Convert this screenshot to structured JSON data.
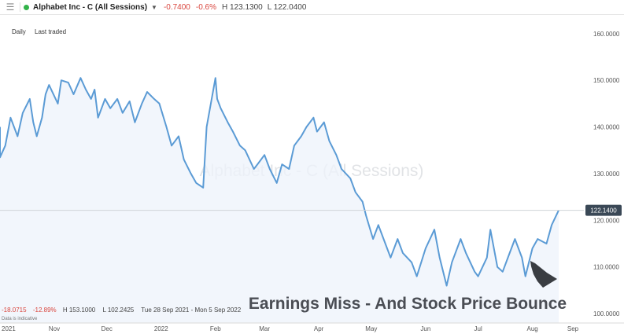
{
  "header": {
    "menu_icon": "hamburger-menu-icon",
    "symbol": "Alphabet Inc - C (All Sessions)",
    "change": "-0.7400",
    "change_pct": "-0.6%",
    "high": "H 123.1300",
    "low": "L 122.0400"
  },
  "timeframes": [
    "Daily",
    "Last traded"
  ],
  "period_stats": {
    "change": "-18.0715",
    "change_pct": "-12.89%",
    "high": "H 153.1000",
    "low": "L 102.2425",
    "range": "Tue 28 Sep 2021 - Mon 5 Sep 2022"
  },
  "disclaimer": "Data is indicative",
  "colors": {
    "line": "#5b9bd5",
    "negative": "#d9453d",
    "status": "#33b34a",
    "price_tag": "#3a4856"
  },
  "chart_data": {
    "type": "area",
    "watermark": "Alphabet Inc - C (All Sessions)",
    "annotation": "Earnings Miss - And Stock Price Bounce",
    "annotation_arrow": "pointing up-left to the late-July low",
    "last_price": "122.1400",
    "ylim": [
      98,
      164
    ],
    "y_ticks": [
      "160.0000",
      "150.0000",
      "140.0000",
      "130.0000",
      "120.0000",
      "110.0000",
      "100.0000"
    ],
    "y_tick_values": [
      160,
      150,
      140,
      130,
      120,
      110,
      100
    ],
    "x_ticks": [
      "2021",
      "Nov",
      "Dec",
      "2022",
      "Feb",
      "Mar",
      "Apr",
      "May",
      "Jun",
      "Jul",
      "Aug",
      "Sep"
    ],
    "x_tick_dates": [
      "2021-10-01",
      "2021-11-01",
      "2021-12-01",
      "2022-01-01",
      "2022-02-01",
      "2022-03-01",
      "2022-04-01",
      "2022-05-01",
      "2022-06-01",
      "2022-07-01",
      "2022-08-01",
      "2022-09-01"
    ],
    "grid": false,
    "series": [
      {
        "dates": [
          "2021-09-28",
          "2021-10-01",
          "2021-10-04",
          "2021-10-07",
          "2021-10-11",
          "2021-10-14",
          "2021-10-18",
          "2021-10-20",
          "2021-10-22",
          "2021-10-25",
          "2021-10-27",
          "2021-10-29",
          "2021-11-03",
          "2021-11-05",
          "2021-11-09",
          "2021-11-12",
          "2021-11-16",
          "2021-11-19",
          "2021-11-22",
          "2021-11-24",
          "2021-11-26",
          "2021-11-30",
          "2021-12-03",
          "2021-12-07",
          "2021-12-10",
          "2021-12-14",
          "2021-12-17",
          "2021-12-21",
          "2021-12-24",
          "2021-12-28",
          "2021-12-31",
          "2022-01-04",
          "2022-01-07",
          "2022-01-11",
          "2022-01-14",
          "2022-01-18",
          "2022-01-21",
          "2022-01-25",
          "2022-01-27",
          "2022-02-01",
          "2022-02-02",
          "2022-02-04",
          "2022-02-08",
          "2022-02-11",
          "2022-02-15",
          "2022-02-18",
          "2022-02-23",
          "2022-02-25",
          "2022-03-01",
          "2022-03-04",
          "2022-03-08",
          "2022-03-11",
          "2022-03-15",
          "2022-03-18",
          "2022-03-22",
          "2022-03-25",
          "2022-03-29",
          "2022-03-31",
          "2022-04-04",
          "2022-04-07",
          "2022-04-11",
          "2022-04-14",
          "2022-04-19",
          "2022-04-22",
          "2022-04-26",
          "2022-04-28",
          "2022-05-02",
          "2022-05-05",
          "2022-05-09",
          "2022-05-12",
          "2022-05-16",
          "2022-05-19",
          "2022-05-24",
          "2022-05-27",
          "2022-06-01",
          "2022-06-06",
          "2022-06-09",
          "2022-06-13",
          "2022-06-16",
          "2022-06-21",
          "2022-06-24",
          "2022-06-29",
          "2022-07-01",
          "2022-07-06",
          "2022-07-08",
          "2022-07-12",
          "2022-07-15",
          "2022-07-19",
          "2022-07-22",
          "2022-07-26",
          "2022-07-28",
          "2022-08-01",
          "2022-08-04",
          "2022-08-09",
          "2022-08-12",
          "2022-08-16"
        ],
        "values": [
          140,
          133.5,
          136,
          142,
          138,
          143,
          146,
          141,
          138,
          142,
          147,
          149,
          145,
          150,
          149.5,
          147,
          150.5,
          148,
          146,
          148,
          142,
          146,
          144,
          146,
          143,
          145.5,
          141,
          145,
          147.5,
          146,
          145,
          140,
          136,
          138,
          133,
          130,
          128,
          127,
          140,
          150.5,
          146,
          144,
          141,
          139,
          136,
          135,
          131,
          132,
          134,
          131,
          128,
          132,
          131,
          136,
          138,
          140,
          142,
          139,
          141,
          137,
          134,
          131,
          129,
          126,
          124,
          121,
          116,
          119,
          115,
          112,
          116,
          113,
          111,
          108,
          114,
          118,
          112,
          106,
          111,
          116,
          113,
          109,
          108,
          112,
          118,
          110,
          109,
          113,
          116,
          112,
          108,
          114,
          116,
          115,
          119,
          122.14
        ]
      }
    ]
  }
}
